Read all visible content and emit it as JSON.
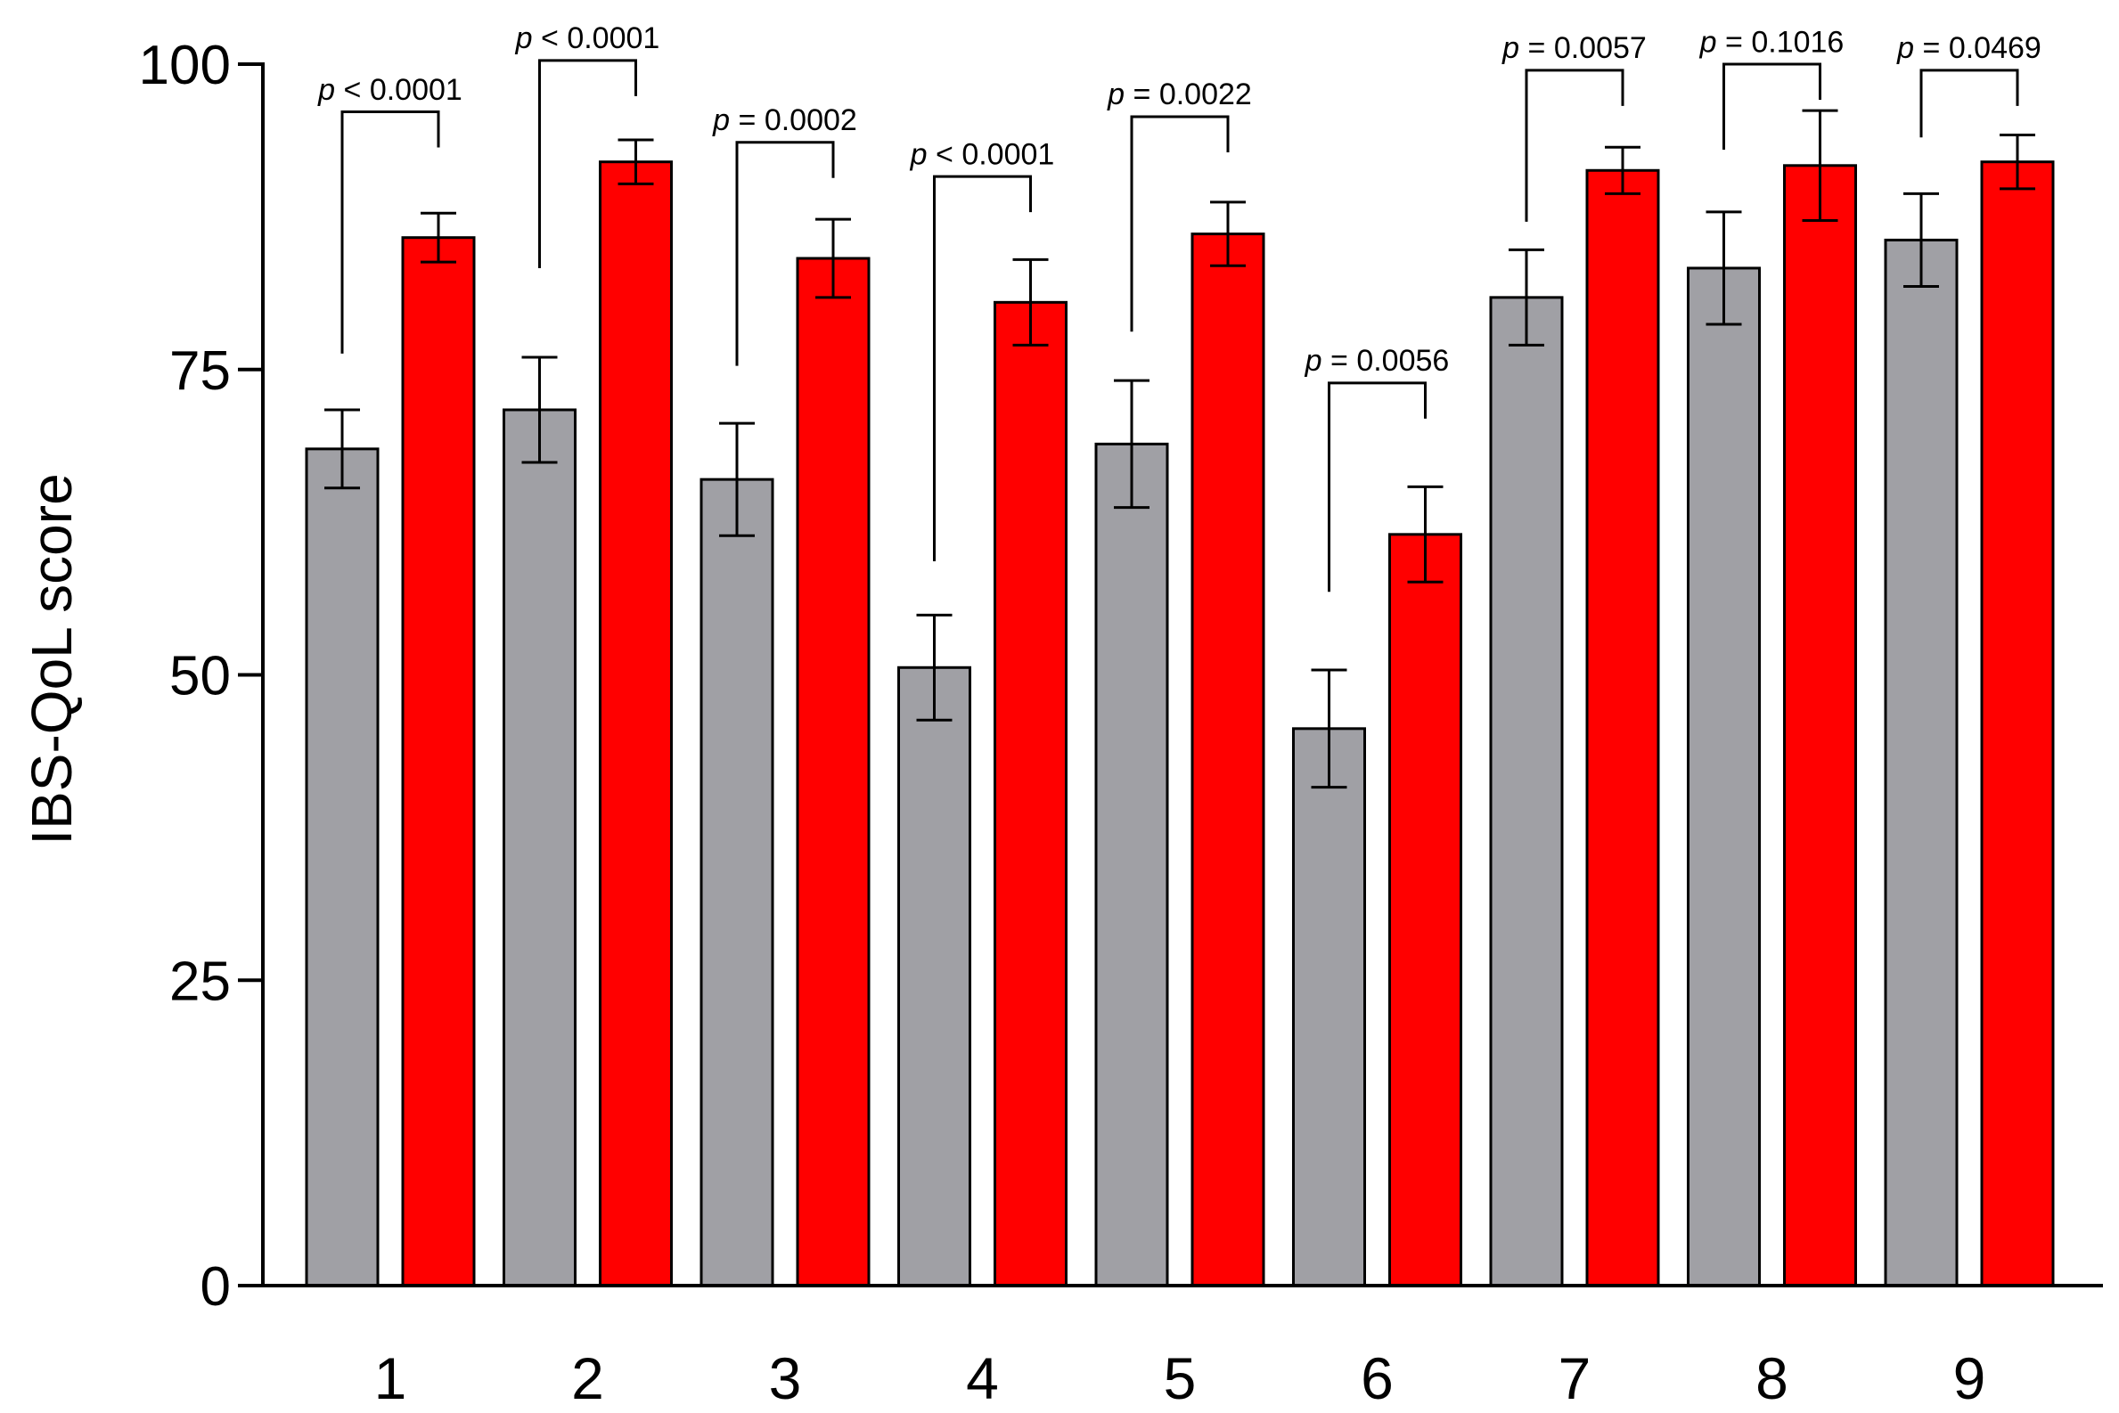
{
  "chart_data": {
    "type": "bar",
    "title": "",
    "xlabel": "",
    "ylabel": "IBS-QoL  score",
    "ylim": [
      0,
      100
    ],
    "yticks": [
      0,
      25,
      50,
      75,
      100
    ],
    "categories": [
      "1",
      "2",
      "3",
      "4",
      "5",
      "6",
      "7",
      "8",
      "9"
    ],
    "grid": false,
    "legend": "none",
    "series": [
      {
        "color": "#a0a0a5",
        "values": [
          68.5,
          71.7,
          66.0,
          50.6,
          68.9,
          45.6,
          80.9,
          83.3,
          85.6
        ],
        "error": [
          3.2,
          4.3,
          4.6,
          4.3,
          5.2,
          4.8,
          3.9,
          4.6,
          3.8
        ]
      },
      {
        "color": "#ff0000",
        "values": [
          85.8,
          92.0,
          84.1,
          80.5,
          86.1,
          61.5,
          91.3,
          91.7,
          92.0
        ],
        "error": [
          2.0,
          1.8,
          3.2,
          3.5,
          2.6,
          3.9,
          1.9,
          4.5,
          2.2
        ]
      }
    ],
    "annotations": [
      {
        "category": "1",
        "italic": "p",
        "rest": " < 0.0001",
        "bracket_y": [
          76.3,
          96.1
        ],
        "label_y": 97.1
      },
      {
        "category": "2",
        "italic": "p",
        "rest": " < 0.0001",
        "bracket_y": [
          83.3,
          100.3
        ],
        "label_y": 101.3
      },
      {
        "category": "3",
        "italic": "p",
        "rest": " = 0.0002",
        "bracket_y": [
          75.3,
          93.6
        ],
        "label_y": 94.6
      },
      {
        "category": "4",
        "italic": "p",
        "rest": " < 0.0001",
        "bracket_y": [
          59.3,
          90.8
        ],
        "label_y": 91.8
      },
      {
        "category": "5",
        "italic": "p",
        "rest": " = 0.0022",
        "bracket_y": [
          78.1,
          95.7
        ],
        "label_y": 96.7
      },
      {
        "category": "6",
        "italic": "p",
        "rest": " = 0.0056",
        "bracket_y": [
          56.8,
          73.9
        ],
        "label_y": 74.9
      },
      {
        "category": "7",
        "italic": "p",
        "rest": " = 0.0057",
        "bracket_y": [
          87.1,
          99.5
        ],
        "label_y": 100.5
      },
      {
        "category": "8",
        "italic": "p",
        "rest": " = 0.1016",
        "bracket_y": [
          93.0,
          100.0
        ],
        "label_y": 101.0
      },
      {
        "category": "9",
        "italic": "p",
        "rest": " = 0.0469",
        "bracket_y": [
          94.0,
          99.5
        ],
        "label_y": 100.5
      }
    ]
  }
}
